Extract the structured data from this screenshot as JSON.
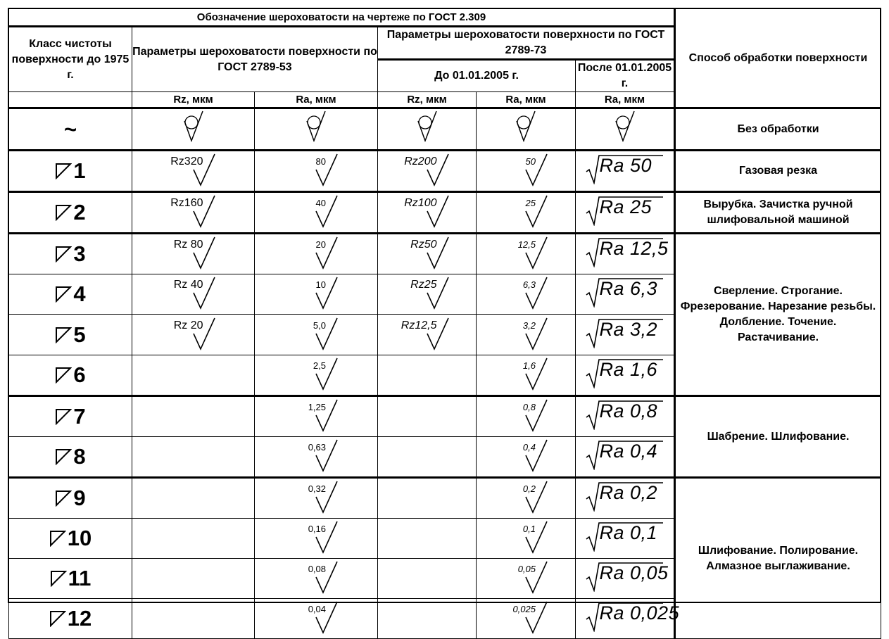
{
  "header": {
    "title": "Обозначение шероховатости на чертеже по ГОСТ 2.309",
    "class_col": "Класс чистоты поверхности до 1975 г.",
    "gost53": "Параметры шероховатости поверхности по ГОСТ 2789-53",
    "gost73": "Параметры шероховатости поверхности по ГОСТ 2789-73",
    "before": "До 01.01.2005 г.",
    "after": "После 01.01.2005 г.",
    "method_col": "Способ обработки поверхности",
    "units": [
      "Rz, мкм",
      "Ra, мкм",
      "Rz, мкм",
      "Ra, мкм",
      "Ra, мкм"
    ]
  },
  "rows": [
    {
      "cls": "~",
      "rz53": "",
      "ra53": "",
      "rz73": "",
      "ra73": "",
      "ra05": "",
      "no_processing": true
    },
    {
      "cls": "1",
      "rz53": "Rz320",
      "ra53": "80",
      "rz73": "Rz200",
      "ra73": "50",
      "ra05": "Ra 50"
    },
    {
      "cls": "2",
      "rz53": "Rz160",
      "ra53": "40",
      "rz73": "Rz100",
      "ra73": "25",
      "ra05": "Ra 25"
    },
    {
      "cls": "3",
      "rz53": "Rz 80",
      "ra53": "20",
      "rz73": "Rz50",
      "ra73": "12,5",
      "ra05": "Ra 12,5"
    },
    {
      "cls": "4",
      "rz53": "Rz 40",
      "ra53": "10",
      "rz73": "Rz25",
      "ra73": "6,3",
      "ra05": "Ra 6,3"
    },
    {
      "cls": "5",
      "rz53": "Rz 20",
      "ra53": "5,0",
      "rz73": "Rz12,5",
      "ra73": "3,2",
      "ra05": "Ra 3,2"
    },
    {
      "cls": "6",
      "rz53": "",
      "ra53": "2,5",
      "rz73": "",
      "ra73": "1,6",
      "ra05": "Ra 1,6"
    },
    {
      "cls": "7",
      "rz53": "",
      "ra53": "1,25",
      "rz73": "",
      "ra73": "0,8",
      "ra05": "Ra 0,8"
    },
    {
      "cls": "8",
      "rz53": "",
      "ra53": "0,63",
      "rz73": "",
      "ra73": "0,4",
      "ra05": "Ra 0,4"
    },
    {
      "cls": "9",
      "rz53": "",
      "ra53": "0,32",
      "rz73": "",
      "ra73": "0,2",
      "ra05": "Ra 0,2"
    },
    {
      "cls": "10",
      "rz53": "",
      "ra53": "0,16",
      "rz73": "",
      "ra73": "0,1",
      "ra05": "Ra 0,1"
    },
    {
      "cls": "11",
      "rz53": "",
      "ra53": "0,08",
      "rz73": "",
      "ra73": "0,05",
      "ra05": "Ra 0,05"
    },
    {
      "cls": "12",
      "rz53": "",
      "ra53": "0,04",
      "rz73": "",
      "ra73": "0,025",
      "ra05": "Ra 0,025"
    }
  ],
  "methods": [
    {
      "text": "Без обработки",
      "span": 1
    },
    {
      "text": "Газовая резка",
      "span": 1
    },
    {
      "text": "Вырубка. Зачистка ручной шлифовальной машиной",
      "span": 1
    },
    {
      "text": "Сверление. Строгание. Фрезерование. Нарезание резьбы. Долбление. Точение. Растачивание.",
      "span": 4
    },
    {
      "text": "Шабрение. Шлифование.",
      "span": 2
    },
    {
      "text": "Шлифование. Полирование. Алмазное выглаживание.",
      "span": 4
    }
  ]
}
